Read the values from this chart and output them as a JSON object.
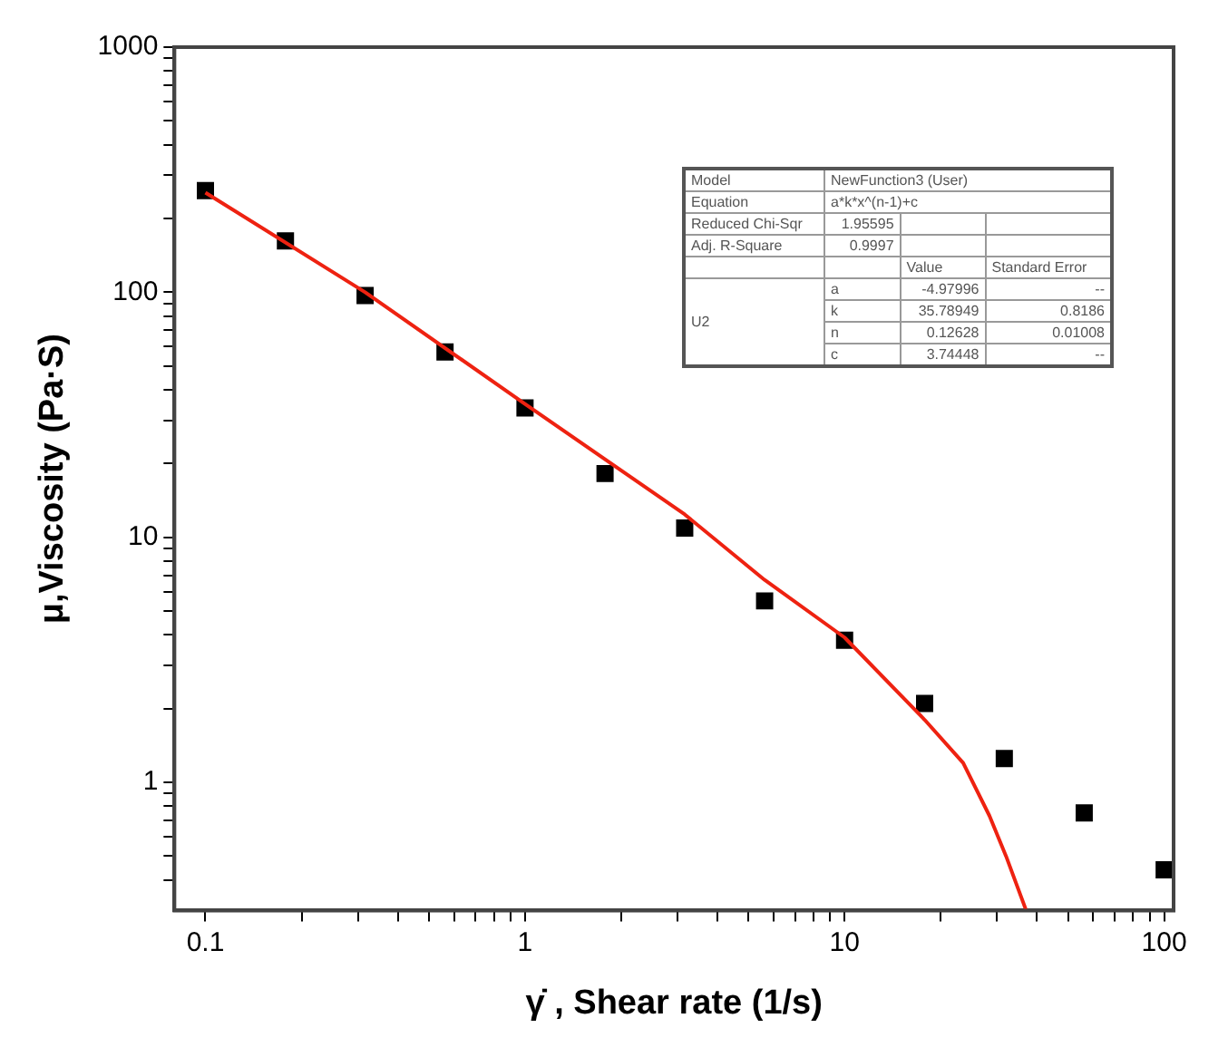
{
  "chart_data": {
    "type": "scatter",
    "xlabel": "γ̇ , Shear rate (1/s)",
    "ylabel": "μ,Viscosity (Pa·S)",
    "log": "xy",
    "grid": false,
    "legend": false,
    "xlim": [
      0.08,
      107
    ],
    "ylim": [
      0.3,
      1000
    ],
    "xticks": [
      0.1,
      {
        "value": 0.2,
        "label": null
      },
      {
        "value": 0.3,
        "label": null
      },
      {
        "value": 0.4,
        "label": null
      },
      {
        "value": 0.5,
        "label": null
      },
      {
        "value": 0.6,
        "label": null
      },
      {
        "value": 0.7,
        "label": null
      },
      {
        "value": 0.8,
        "label": null
      },
      {
        "value": 0.9,
        "label": null
      },
      1,
      {
        "value": 2,
        "label": null
      },
      {
        "value": 3,
        "label": null
      },
      {
        "value": 4,
        "label": null
      },
      {
        "value": 5,
        "label": null
      },
      {
        "value": 6,
        "label": null
      },
      {
        "value": 7,
        "label": null
      },
      {
        "value": 8,
        "label": null
      },
      {
        "value": 9,
        "label": null
      },
      10,
      {
        "value": 20,
        "label": null
      },
      {
        "value": 30,
        "label": null
      },
      {
        "value": 40,
        "label": null
      },
      {
        "value": 50,
        "label": null
      },
      {
        "value": 60,
        "label": null
      },
      {
        "value": 70,
        "label": null
      },
      {
        "value": 80,
        "label": null
      },
      {
        "value": 90,
        "label": null
      },
      100
    ],
    "yticks": [
      {
        "value": 0.4,
        "label": null
      },
      {
        "value": 0.5,
        "label": null
      },
      {
        "value": 0.6,
        "label": null
      },
      {
        "value": 0.7,
        "label": null
      },
      {
        "value": 0.8,
        "label": null
      },
      {
        "value": 0.9,
        "label": null
      },
      1,
      {
        "value": 2,
        "label": null
      },
      {
        "value": 3,
        "label": null
      },
      {
        "value": 4,
        "label": null
      },
      {
        "value": 5,
        "label": null
      },
      {
        "value": 6,
        "label": null
      },
      {
        "value": 7,
        "label": null
      },
      {
        "value": 8,
        "label": null
      },
      {
        "value": 9,
        "label": null
      },
      10,
      {
        "value": 20,
        "label": null
      },
      {
        "value": 30,
        "label": null
      },
      {
        "value": 40,
        "label": null
      },
      {
        "value": 50,
        "label": null
      },
      {
        "value": 60,
        "label": null
      },
      {
        "value": 70,
        "label": null
      },
      {
        "value": 80,
        "label": null
      },
      {
        "value": 90,
        "label": null
      },
      100,
      {
        "value": 200,
        "label": null
      },
      {
        "value": 300,
        "label": null
      },
      {
        "value": 400,
        "label": null
      },
      {
        "value": 500,
        "label": null
      },
      {
        "value": 600,
        "label": null
      },
      {
        "value": 700,
        "label": null
      },
      {
        "value": 800,
        "label": null
      },
      {
        "value": 900,
        "label": null
      },
      1000
    ],
    "series": [
      {
        "marker": "square",
        "color": "#000000",
        "x": [
          0.1,
          0.178,
          0.316,
          0.562,
          1,
          1.78,
          3.16,
          5.62,
          10,
          17.8,
          31.6,
          56.2,
          100
        ],
        "values": [
          260,
          162,
          97,
          57,
          33.7,
          18.2,
          10.9,
          5.5,
          3.8,
          2.1,
          1.25,
          0.75,
          0.44
        ]
      },
      {
        "type": "line",
        "marker": "none",
        "color": "#ee2211",
        "x": [
          0.1,
          0.316,
          1,
          3.16,
          5.62,
          10,
          17.8,
          23.5,
          28.4,
          32,
          37
        ],
        "values": [
          255,
          100,
          35,
          12.4,
          6.7,
          3.9,
          1.8,
          1.2,
          0.73,
          0.5,
          0.3
        ]
      }
    ],
    "annotations": [
      "Model",
      "NewFunction3 (User)",
      "Equation",
      "a*k*x^(n-1)+c",
      "Reduced Chi-Sqr",
      "1.95595",
      "Adj. R-Square",
      "0.9997",
      "Value",
      "Standard Error",
      "U2",
      "a",
      "-4.97996",
      "--",
      "k",
      "35.78949",
      "0.8186",
      "n",
      "0.12628",
      "0.01008",
      "c",
      "3.74448",
      "--"
    ]
  }
}
